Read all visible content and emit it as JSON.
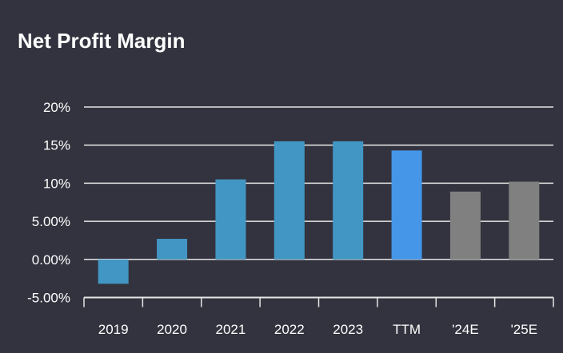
{
  "chart_data": {
    "type": "bar",
    "title": "Net Profit Margin",
    "categories": [
      "2019",
      "2020",
      "2021",
      "2022",
      "2023",
      "TTM",
      "'24E",
      "'25E"
    ],
    "values": [
      -3.2,
      2.7,
      10.5,
      15.5,
      15.5,
      14.3,
      8.9,
      10.2
    ],
    "y_ticks": [
      20,
      15,
      10,
      5,
      0,
      -5
    ],
    "y_tick_labels": [
      "20%",
      "15%",
      "10%",
      "5.00%",
      "0.00%",
      "-5.00%"
    ],
    "ylim": [
      -5,
      20
    ],
    "grid": true,
    "xlabel": "",
    "ylabel": "",
    "colors": {
      "background": "#33333f",
      "historical": "#4296c4",
      "ttm": "#4596e8",
      "estimate": "#808080",
      "grid": "#e6e6e6",
      "text": "#ffffff"
    },
    "bar_color_keys": [
      "historical",
      "historical",
      "historical",
      "historical",
      "historical",
      "ttm",
      "estimate",
      "estimate"
    ]
  }
}
